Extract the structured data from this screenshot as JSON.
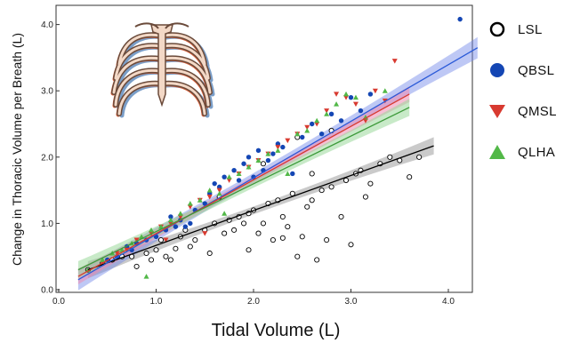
{
  "chart_data": {
    "type": "scatter",
    "title": "",
    "xlabel": "Tidal Volume (L)",
    "ylabel": "Change in Thoracic Volume per Breath (L)",
    "xlim": [
      0,
      4.5
    ],
    "ylim": [
      0,
      4.1
    ],
    "xticks": [
      "0.0",
      "1.0",
      "2.0",
      "3.0",
      "4.0"
    ],
    "yticks": [
      "0.0",
      "1.0",
      "2.0",
      "3.0",
      "4.0"
    ],
    "grid": false,
    "legend_position": "right",
    "annotations": [
      "rib-cage illustration (top-left)"
    ],
    "series": [
      {
        "name": "LSL",
        "marker": "open-circle",
        "color": "#000000",
        "fit": {
          "x": [
            0.3,
            3.85
          ],
          "y": [
            0.3,
            2.17
          ]
        },
        "points": [
          [
            0.3,
            0.3
          ],
          [
            0.45,
            0.4
          ],
          [
            0.55,
            0.45
          ],
          [
            0.65,
            0.5
          ],
          [
            0.75,
            0.5
          ],
          [
            0.8,
            0.35
          ],
          [
            0.9,
            0.55
          ],
          [
            0.95,
            0.45
          ],
          [
            1.0,
            0.6
          ],
          [
            1.05,
            0.75
          ],
          [
            1.1,
            0.5
          ],
          [
            1.15,
            0.45
          ],
          [
            1.2,
            0.62
          ],
          [
            1.25,
            0.8
          ],
          [
            1.3,
            0.9
          ],
          [
            1.35,
            0.65
          ],
          [
            1.4,
            0.75
          ],
          [
            1.5,
            0.9
          ],
          [
            1.55,
            0.55
          ],
          [
            1.6,
            1.0
          ],
          [
            1.7,
            0.85
          ],
          [
            1.75,
            1.05
          ],
          [
            1.8,
            0.9
          ],
          [
            1.85,
            1.1
          ],
          [
            1.9,
            1.0
          ],
          [
            1.95,
            1.15
          ],
          [
            2.0,
            1.2
          ],
          [
            2.05,
            0.85
          ],
          [
            2.1,
            1.0
          ],
          [
            2.15,
            1.3
          ],
          [
            2.2,
            0.75
          ],
          [
            2.25,
            1.35
          ],
          [
            2.3,
            1.1
          ],
          [
            2.35,
            0.95
          ],
          [
            2.4,
            1.45
          ],
          [
            2.45,
            0.5
          ],
          [
            2.5,
            0.8
          ],
          [
            2.55,
            1.25
          ],
          [
            2.6,
            1.35
          ],
          [
            2.65,
            0.45
          ],
          [
            2.7,
            1.5
          ],
          [
            2.75,
            0.75
          ],
          [
            2.8,
            1.55
          ],
          [
            2.9,
            1.1
          ],
          [
            2.95,
            1.65
          ],
          [
            3.0,
            0.68
          ],
          [
            3.05,
            1.75
          ],
          [
            3.1,
            1.8
          ],
          [
            3.15,
            1.4
          ],
          [
            3.2,
            1.6
          ],
          [
            3.3,
            1.9
          ],
          [
            3.4,
            2.0
          ],
          [
            3.5,
            1.95
          ],
          [
            3.6,
            1.7
          ],
          [
            3.7,
            2.0
          ],
          [
            2.45,
            2.3
          ],
          [
            2.1,
            1.9
          ],
          [
            2.8,
            2.4
          ],
          [
            1.65,
            1.4
          ],
          [
            2.6,
            1.75
          ],
          [
            2.3,
            0.78
          ],
          [
            1.95,
            0.6
          ]
        ]
      },
      {
        "name": "QBSL",
        "marker": "filled-circle",
        "color": "#1446b4",
        "fit": {
          "x": [
            0.2,
            4.3
          ],
          "y": [
            0.15,
            3.65
          ]
        },
        "points": [
          [
            0.5,
            0.45
          ],
          [
            0.6,
            0.5
          ],
          [
            0.7,
            0.65
          ],
          [
            0.8,
            0.7
          ],
          [
            0.9,
            0.75
          ],
          [
            1.0,
            0.8
          ],
          [
            1.1,
            0.9
          ],
          [
            1.2,
            0.95
          ],
          [
            1.25,
            1.05
          ],
          [
            1.3,
            0.95
          ],
          [
            1.4,
            1.2
          ],
          [
            1.5,
            1.3
          ],
          [
            1.55,
            1.45
          ],
          [
            1.6,
            1.6
          ],
          [
            1.65,
            1.55
          ],
          [
            1.7,
            1.7
          ],
          [
            1.8,
            1.8
          ],
          [
            1.85,
            1.65
          ],
          [
            1.9,
            1.9
          ],
          [
            1.95,
            2.0
          ],
          [
            2.0,
            1.7
          ],
          [
            2.05,
            2.1
          ],
          [
            2.1,
            1.8
          ],
          [
            2.2,
            2.05
          ],
          [
            2.25,
            2.2
          ],
          [
            2.3,
            2.15
          ],
          [
            2.4,
            1.75
          ],
          [
            2.5,
            2.3
          ],
          [
            2.6,
            2.5
          ],
          [
            2.7,
            2.35
          ],
          [
            2.8,
            2.65
          ],
          [
            2.9,
            2.55
          ],
          [
            3.0,
            2.9
          ],
          [
            3.1,
            2.7
          ],
          [
            3.2,
            2.95
          ],
          [
            4.12,
            4.08
          ],
          [
            0.75,
            0.6
          ],
          [
            1.15,
            1.1
          ],
          [
            1.35,
            1.0
          ],
          [
            2.15,
            1.95
          ]
        ]
      },
      {
        "name": "QMSL",
        "marker": "down-triangle",
        "color": "#d83a30",
        "fit": {
          "x": [
            0.2,
            3.6
          ],
          "y": [
            0.2,
            2.95
          ]
        },
        "points": [
          [
            0.45,
            0.4
          ],
          [
            0.6,
            0.55
          ],
          [
            0.7,
            0.6
          ],
          [
            0.8,
            0.75
          ],
          [
            0.95,
            0.85
          ],
          [
            1.05,
            0.95
          ],
          [
            1.15,
            1.0
          ],
          [
            1.25,
            1.1
          ],
          [
            1.35,
            1.25
          ],
          [
            1.45,
            1.35
          ],
          [
            1.55,
            1.4
          ],
          [
            1.65,
            1.5
          ],
          [
            1.75,
            1.65
          ],
          [
            1.85,
            1.75
          ],
          [
            1.95,
            1.85
          ],
          [
            2.05,
            1.95
          ],
          [
            2.15,
            2.05
          ],
          [
            2.25,
            2.15
          ],
          [
            2.35,
            2.25
          ],
          [
            2.45,
            2.35
          ],
          [
            2.55,
            2.45
          ],
          [
            2.65,
            2.5
          ],
          [
            2.75,
            2.7
          ],
          [
            2.85,
            2.95
          ],
          [
            2.95,
            2.9
          ],
          [
            3.05,
            2.8
          ],
          [
            3.15,
            2.55
          ],
          [
            3.25,
            3.0
          ],
          [
            3.35,
            2.85
          ],
          [
            3.45,
            3.45
          ],
          [
            1.5,
            0.85
          ],
          [
            1.1,
            0.75
          ]
        ]
      },
      {
        "name": "QLHA",
        "marker": "up-triangle",
        "color": "#52b848",
        "fit": {
          "x": [
            0.2,
            3.6
          ],
          "y": [
            0.3,
            2.75
          ]
        },
        "points": [
          [
            0.3,
            0.3
          ],
          [
            0.45,
            0.45
          ],
          [
            0.55,
            0.55
          ],
          [
            0.65,
            0.6
          ],
          [
            0.75,
            0.7
          ],
          [
            0.85,
            0.8
          ],
          [
            0.95,
            0.9
          ],
          [
            1.05,
            0.95
          ],
          [
            1.15,
            1.05
          ],
          [
            1.25,
            1.15
          ],
          [
            1.35,
            1.3
          ],
          [
            1.45,
            1.35
          ],
          [
            1.55,
            1.5
          ],
          [
            1.65,
            1.45
          ],
          [
            1.75,
            1.7
          ],
          [
            1.85,
            1.75
          ],
          [
            1.95,
            1.85
          ],
          [
            2.05,
            1.95
          ],
          [
            2.15,
            2.05
          ],
          [
            2.25,
            2.1
          ],
          [
            2.35,
            1.75
          ],
          [
            2.45,
            2.35
          ],
          [
            2.55,
            2.4
          ],
          [
            2.65,
            2.55
          ],
          [
            2.75,
            2.65
          ],
          [
            2.85,
            2.8
          ],
          [
            2.95,
            2.95
          ],
          [
            3.05,
            2.9
          ],
          [
            3.15,
            2.6
          ],
          [
            3.35,
            3.0
          ],
          [
            0.9,
            0.2
          ],
          [
            1.7,
            1.15
          ]
        ]
      }
    ]
  },
  "legend": {
    "items": [
      {
        "label": "LSL"
      },
      {
        "label": "QBSL"
      },
      {
        "label": "QMSL"
      },
      {
        "label": "QLHA"
      }
    ]
  }
}
